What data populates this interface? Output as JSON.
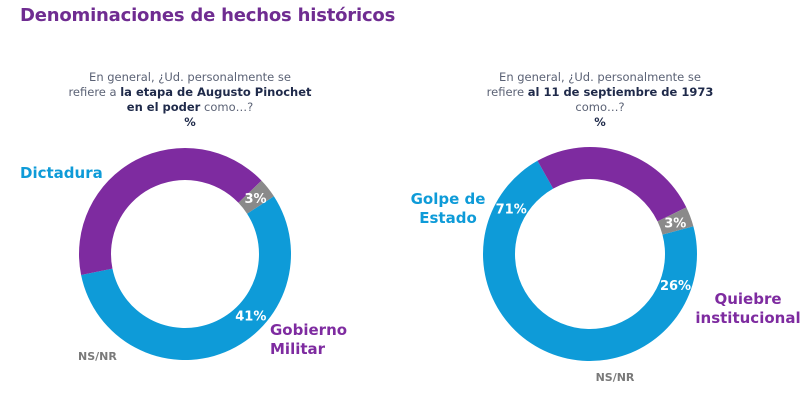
{
  "header": {
    "title": "Denominaciones de hechos históricos"
  },
  "questions": [
    {
      "line1": "En general, ¿Ud. personalmente se",
      "line2_pre": "refiere a ",
      "line2_bold": "la etapa de Augusto Pinochet",
      "line3_bold": "en el poder",
      "line3_post": " como…?",
      "unit": "%"
    },
    {
      "line1": "En general, ¿Ud. personalmente se",
      "line2_pre": "refiere ",
      "line2_bold": "al 11 de septiembre de 1973",
      "line3_bold": "",
      "line3_post": "como…?",
      "unit": "%"
    }
  ],
  "colors": {
    "blue": "#0e9bd8",
    "purple": "#7e2ba0",
    "gray": "#8a8a8a",
    "title": "#6f2c91"
  },
  "chart_data": [
    {
      "type": "pie",
      "donut": true,
      "title": "la etapa de Augusto Pinochet en el poder",
      "slices": [
        {
          "name": "Dictadura",
          "value": 56,
          "label": "56%",
          "color": "#0e9bd8"
        },
        {
          "name": "Gobierno Militar",
          "value": 41,
          "label": "41%",
          "color": "#7e2ba0"
        },
        {
          "name": "NS/NR",
          "value": 3,
          "label": "3%",
          "color": "#8a8a8a"
        }
      ],
      "start_angle_deg": 57
    },
    {
      "type": "pie",
      "donut": true,
      "title": "al 11 de septiembre de 1973",
      "slices": [
        {
          "name": "Golpe de Estado",
          "value": 71,
          "label": "71%",
          "color": "#0e9bd8"
        },
        {
          "name": "Quiebre institucional",
          "value": 26,
          "label": "26%",
          "color": "#7e2ba0"
        },
        {
          "name": "NS/NR",
          "value": 3,
          "label": "3%",
          "color": "#8a8a8a"
        }
      ],
      "start_angle_deg": 75
    }
  ],
  "category_labels": [
    {
      "chart": 0,
      "lines": [
        "Dictadura"
      ]
    },
    {
      "chart": 0,
      "lines": [
        "Gobierno",
        "Militar"
      ]
    },
    {
      "chart": 0,
      "lines": [
        "NS/NR"
      ]
    },
    {
      "chart": 1,
      "lines": [
        "Golpe de",
        "Estado"
      ]
    },
    {
      "chart": 1,
      "lines": [
        "Quiebre",
        "institucional"
      ]
    },
    {
      "chart": 1,
      "lines": [
        "NS/NR"
      ]
    }
  ]
}
